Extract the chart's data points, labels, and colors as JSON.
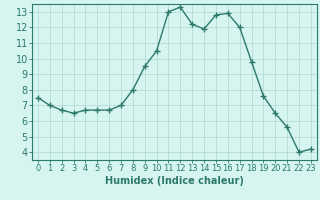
{
  "x": [
    0,
    1,
    2,
    3,
    4,
    5,
    6,
    7,
    8,
    9,
    10,
    11,
    12,
    13,
    14,
    15,
    16,
    17,
    18,
    19,
    20,
    21,
    22,
    23
  ],
  "y": [
    7.5,
    7.0,
    6.7,
    6.5,
    6.7,
    6.7,
    6.7,
    7.0,
    8.0,
    9.5,
    10.5,
    13.0,
    13.3,
    12.2,
    11.9,
    12.8,
    12.9,
    12.0,
    9.8,
    7.6,
    6.5,
    5.6,
    4.0,
    4.2
  ],
  "line_color": "#2d7a6b",
  "marker": "+",
  "marker_size": 4,
  "bg_color": "#d6f5f0",
  "grid_color": "#aed8d0",
  "xlabel": "Humidex (Indice chaleur)",
  "xlim": [
    -0.5,
    23.5
  ],
  "ylim": [
    3.5,
    13.5
  ],
  "yticks": [
    4,
    5,
    6,
    7,
    8,
    9,
    10,
    11,
    12,
    13
  ],
  "xticks": [
    0,
    1,
    2,
    3,
    4,
    5,
    6,
    7,
    8,
    9,
    10,
    11,
    12,
    13,
    14,
    15,
    16,
    17,
    18,
    19,
    20,
    21,
    22,
    23
  ],
  "xlabel_fontsize": 7,
  "tick_fontsize": 6,
  "axis_color": "#2d7a6b",
  "linewidth": 1.0
}
